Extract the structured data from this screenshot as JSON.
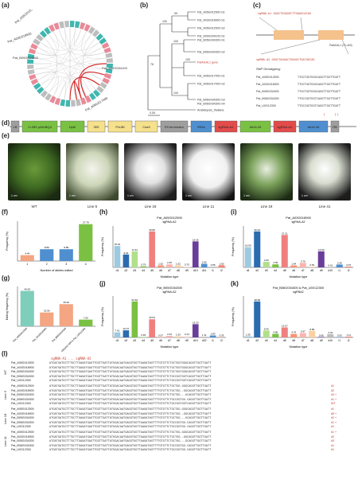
{
  "panels": {
    "a": "(a)",
    "b": "(b)",
    "c": "(c)",
    "d": "(d)",
    "e": "(e)",
    "f": "(f)",
    "g": "(g)",
    "h": "(h)",
    "i": "(i)",
    "j": "(j)",
    "k": "(k)",
    "l": "(l)"
  },
  "circos": {
    "labels_left": [
      "Pat_A05G012500",
      "Pat_A03G018900",
      "Pat_B05G034300"
    ],
    "labels_right": [
      "Pat_A09G034100",
      "Pat_A06G017400"
    ],
    "colors": {
      "ring_teal": "#3fb7b0",
      "ring_pink": "#e98a98",
      "link": "#d62728",
      "ring_gray": "#bdbdbd"
    }
  },
  "tree": {
    "leaves": [
      "Pat_A05G012500.m1",
      "Pat_A03G018900.m1",
      "Pat_A05G012500.m2",
      "Pat_A09G034100.m1",
      "Pat_B05G034300.m1",
      "Pat_B06G034300.m2",
      "PatAGAL1 gene",
      "Pat_A06G017400.m1",
      "Pat_A06G017400.m2",
      "Pat_B06G034300.m3",
      "Pat_B06G034300.m4",
      "Arabidopsis_thaliana"
    ],
    "bootstrap": [
      "100",
      "99",
      "100",
      "100",
      "100",
      "76"
    ],
    "scale": "0.05"
  },
  "gene_model": {
    "target1": "sgRNA-A1 GAGCTGGAGGCTTGAAGCACAG",
    "target2": "sgRNA-A2 GAGCTAGAACTGAGGCTGATAGCAG",
    "exon_label": "PatAGAL1 (70–400)",
    "snp_title": "SNP Genotyping:",
    "snp_rows": [
      {
        "name": "Pat_A05G012500",
        "seq": "TTGCTGGTGGGCAGGTTGGTTGATT"
      },
      {
        "name": "Pat_A03G018900",
        "seq": "TTGCTGGTGGGCAGGTTGGTTGATT"
      },
      {
        "name": "Pat_B05G034300",
        "seq": "TTGCTGGTGGGCAGGTTGGTTGATT"
      },
      {
        "name": "Pat_B06G034300",
        "seq": "TTGCCGGTGGTCAGGTTGGTTGATT"
      },
      {
        "name": "Pat_U0G12300",
        "seq": "TTGCCGGTGGTCAGGTTGGTTGATT"
      }
    ]
  },
  "construct": {
    "segments": [
      "LB",
      "2×35S pAtUBQ4",
      "HptII",
      "35S",
      "PcUBI",
      "Cas9",
      "E9 terminator",
      "tRNA",
      "sgRNA-A1",
      "AtU6-26",
      "sgRNA-A2",
      "AtU6-26",
      "RB"
    ],
    "colors": {
      "green": "#7ac143",
      "yellow": "#f5e08c",
      "blue": "#4f8fd0",
      "red": "#e34b4b",
      "gray": "#9e9e9e"
    }
  },
  "photos": {
    "captions": [
      "WT",
      "Line 5",
      "Line 18",
      "Line 11",
      "Line 19",
      "Line 41"
    ],
    "scale_bar": "1 cm"
  },
  "chart_f": {
    "type": "bar",
    "categories": [
      "1",
      "2",
      "3",
      "4"
    ],
    "values": [
      4.44,
      8.89,
      8.89,
      27.78
    ],
    "xlabel": "Number of alleles edited",
    "ylabel": "Frequency (%)",
    "ylim": [
      0,
      30
    ],
    "colors": [
      "#f4a582",
      "#4f8fd0",
      "#4f8fd0",
      "#7ac143"
    ]
  },
  "chart_g": {
    "type": "bar",
    "categories": [
      "Pat_A05G012500",
      "Pat_A03G018900",
      "Pat_B05G034300",
      "Pat_A06G017400 & Pat_U0G12300"
    ],
    "values": [
      40.0,
      15.56,
      25.0,
      7.5
    ],
    "ylabel": "Editing frequency (%)",
    "ylim": [
      0,
      45
    ],
    "colors": [
      "#7fcdbb",
      "#f4a582",
      "#f4a582",
      "#7ac143"
    ]
  },
  "chart_h": {
    "type": "bar",
    "title": "Pat_A05G012500",
    "subtitle": "sgRNA-A2",
    "categories": [
      "d1",
      "d2",
      "d3",
      "d4",
      "d5",
      "d6",
      "d7",
      "d8",
      "d9",
      "d10",
      "d11",
      "i1",
      "i2"
    ],
    "values": [
      15.91,
      9.62,
      11.91,
      0.79,
      26.8,
      1.52,
      2.25,
      1.52,
      0.75,
      19.35,
      2.65,
      0.55,
      1.6
    ],
    "xlabel": "Mutation type",
    "ylabel": "Frequency (%)",
    "colors": [
      "#9ecae1",
      "#2b6cb0",
      "#b2df8a",
      "#7ac143",
      "#f08080",
      "#fc9272",
      "#fbb4ae",
      "#fdd0a2",
      "#fde0dd",
      "#6a3d9a",
      "#4f8fd0",
      "#bdbdbd",
      "#fb8072"
    ]
  },
  "chart_i": {
    "type": "bar",
    "title": "Pat_A03G018900",
    "subtitle": "sgRNA-A2",
    "categories": [
      "d1",
      "d2",
      "d3",
      "d4",
      "d5",
      "d6",
      "d7",
      "d8",
      "d9",
      "d10",
      "i1",
      "i2"
    ],
    "values": [
      16.99,
      30.23,
      4.63,
      2.55,
      27.21,
      1.64,
      3.76,
      0.54,
      13.5,
      0.41,
      2.39,
      0.67
    ],
    "xlabel": "Mutation type",
    "ylabel": "Frequency (%)",
    "colors": [
      "#9ecae1",
      "#2b6cb0",
      "#b2df8a",
      "#7ac143",
      "#f08080",
      "#fc9272",
      "#fbb4ae",
      "#fdd0a2",
      "#6a3d9a",
      "#bdbdbd",
      "#4f8fd0",
      "#fb8072"
    ]
  },
  "chart_j": {
    "type": "bar",
    "title": "Pat_B05G034300",
    "subtitle": "sgRNA-A2",
    "categories": [
      "d1",
      "d2",
      "d3",
      "d4",
      "d5",
      "d6",
      "d7",
      "d8",
      "d9",
      "d10",
      "d22",
      "i1",
      "i2"
    ],
    "values": [
      7.41,
      10.37,
      52.64,
      0.93,
      26.54,
      0.57,
      2.24,
      1.63,
      2.14,
      19.33,
      1.11,
      2.83,
      0.35
    ],
    "xlabel": "Mutation type",
    "ylabel": "Frequency (%)",
    "colors": [
      "#9ecae1",
      "#2b6cb0",
      "#7ac143",
      "#b2df8a",
      "#f08080",
      "#fc9272",
      "#fbb4ae",
      "#fdd0a2",
      "#fde0dd",
      "#6a3d9a",
      "#bdbdbd",
      "#4f8fd0",
      "#fb8072"
    ]
  },
  "chart_k": {
    "type": "bar",
    "title": "Pat_B06G034300 & Pat_U0G12300",
    "subtitle": "sgRNA2",
    "categories": [
      "d1",
      "d2",
      "d3",
      "d4",
      "d5",
      "d6",
      "d7",
      "d8",
      "d9",
      "d10",
      "i1",
      "i2"
    ],
    "values": [
      1.55,
      48.98,
      9.43,
      4.85,
      13.57,
      4.76,
      5.97,
      8.89,
      0.66,
      4.43,
      0.53,
      1.11
    ],
    "xlabel": "Mutation type",
    "ylabel": "Frequency (%)",
    "colors": [
      "#9ecae1",
      "#2b6cb0",
      "#b2df8a",
      "#7ac143",
      "#f08080",
      "#fc9272",
      "#fbb4ae",
      "#fdd0a2",
      "#6a3d9a",
      "#bdbdbd",
      "#4f8fd0",
      "#fb8072"
    ]
  },
  "alignment": {
    "header": "sgRNA-A1 ... sgRNA-A2",
    "groups": [
      {
        "label": "WT",
        "rows": [
          {
            "name": "Pat_A05G012500",
            "seq": "ATGATGATGCTTTGCTTGAGATGAGTTGGTTGATTATGGACAATGAGGTGGTTAAGATAGTTTTGTGTTCTGCTGGTGGGCAGGTTGGTTGATT",
            "tag": ""
          },
          {
            "name": "Pat_A03G018900",
            "seq": "ATGATGATGCTTTGCTTGAGATGAGTTGGTTGATTATGGACAATGAGGTGGTTAAGATAGTTTTGTGTTCTGCTGGTGGGCAGGTTGGTTGATT",
            "tag": ""
          },
          {
            "name": "Pat_B05G034300",
            "seq": "ATGATGATGCTTTGCTTGAGATGAGTTGGTTGATTATGGACAATGAGGTGGTTAAGATAGTTTTGTGTTCTGCTGGTGGGCAGGTTGGTTGATT",
            "tag": ""
          },
          {
            "name": "Pat_B06G034300",
            "seq": "ATGATGATGCTTTGCTTGAGATGAGTTGGTTGATTATGGACAATGAGGTGGTTAAGATAGTTTTGTGTTCTGCCGGTGGTCAGGTTGGTTGATT",
            "tag": ""
          },
          {
            "name": "Pat_U0G12300",
            "seq": "ATGATGATGCTTTGCTTGAGATGAGTTGGTTGATTATGGACAATGAGGTGGTTAAGATAGTTTTGTGTTCTGCCGGTGGTCAGGTTGGTTGATT",
            "tag": ""
          }
        ]
      },
      {
        "label": "Line 5",
        "rows": [
          {
            "name": "Pat_A05G012500",
            "seq": "ATGATGATGCTTTGCTTGAGATGAGTTGGTTGATTATGGACAATGAGGTGGTTAAGATAGTTTTGTGTTCTGCTGG-GGGCAGGTTGGTTGATT",
            "tag": "d1"
          },
          {
            "name": "Pat_A03G018900",
            "seq": "ATGATGATGCTTTGCTTGAGATGAGTTGGTTGATTATGGACAATGAGGTGGTTAAGATAGTTTTGTGTTCTGCTGG--GGCAGGTTGGTTGATT",
            "tag": "d2"
          },
          {
            "name": "Pat_B05G034300",
            "seq": "ATGATGATGCTTTGCTTGAGATGAGTTGGTTGATTATGGACAATGAGGTGGTTAAGATAGTTTTGTGTTCTGCTGG---GCAGGTTGGTTGATT",
            "tag": "d3 +"
          },
          {
            "name": "Pat_B06G034300",
            "seq": "ATGATGATGCTTTGCTTGAGATGAGTTGGTTGATTATGGACAATGAGGTGGTTAAGATAGTTTTGTGTTCTGCCGGTGG-CAGGTTGGTTGATT",
            "tag": "d1 +"
          },
          {
            "name": "Pat_U0G12300",
            "seq": "ATGATGATGCTTTGCTTGAGATGAGTTGGTTGATTATGGACAATGAGGTGGTTAAGATAGTTTTGTGTTCTGCCGGTGGTCAGGTTGGTTGATT",
            "tag": "WT"
          }
        ]
      },
      {
        "label": "Line 18",
        "rows": [
          {
            "name": "Pat_A05G012500",
            "seq": "ATGATGATGCTTTGCTTGAGATGAGTTGGTTGATTATGGACAATGAGGTGGTTAAGATAGTTTTGTGTTCTGCTGG-GGGCAGGTTGGTTGATT",
            "tag": "d1"
          },
          {
            "name": "Pat_A03G018900",
            "seq": "ATGATGATGCTTTGCTTGAGATGAGTTGGTTGATTATGGACAATGAGGTGGTTAAGATAGTTTTGTGTTCTGCTGG--GGCAGGTTGGTTGATT",
            "tag": "d5 +"
          },
          {
            "name": "Pat_B05G034300",
            "seq": "ATGATGATGCTTTGCTTGAGATGAGTTGGTTGATTATGGACAATGAGGTGGTTAAGATAGTTTTGTGTTCTGCTGG---GCAGGTTGGTTGATT",
            "tag": "d2 +"
          },
          {
            "name": "Pat_B06G034300",
            "seq": "ATGATGATGCTTTGCTTGAGATGAGTTGGTTGATTATGGACAATGAGGTGGTTAAGATAGTTTTGTGTTCTGCCGGTGG-CAGGTTGGTTGATT",
            "tag": "d1 +"
          },
          {
            "name": "Pat_U0G12300",
            "seq": "ATGATGATGCTTTGCTTGAGATGAGTTGGTTGATTATGGACAATGAGGTGGTTAAGATAGTTTTGTGTTCTGCCGGTGG-CAGGTTGGTTGATT",
            "tag": "d1"
          }
        ]
      },
      {
        "label": "Line 11",
        "rows": [
          {
            "name": "Pat_A05G012500",
            "seq": "ATGATGATGCTTTGCTTGAGATGAGTTGGTTGATTATGGACAATGAGGTGGTTAAGATAGTTTTGTGTTCTGCTGG-GGGCAGGTTGGTTGATT",
            "tag": "d1 +"
          },
          {
            "name": "Pat_A03G018900",
            "seq": "ATGATGATGCTTTGCTTGAGATGAGTTGGTTGATTATGGACAATGAGGTGGTTAAGATAGTTTTGTGTTCTGCTGG--GGCAGGTTGGTTGATT",
            "tag": "d2"
          },
          {
            "name": "Pat_B05G034300",
            "seq": "ATGATGATGCTTTGCTTGAGATGAGTTGGTTGATTATGGACAATGAGGTGGTTAAGATAGTTTTGTGTTCTGCTGG---GCAGGTTGGTTGATT",
            "tag": "d3"
          },
          {
            "name": "Pat_B06G034300",
            "seq": "ATGATGATGCTTTGCTTGAGATGAGTTGGTTGATTATGGACAATGAGGTGGTTAAGATAGTTTTGTGTTCTGCCGGTGG-CAGGTTGGTTGATT",
            "tag": "d1"
          },
          {
            "name": "Pat_U0G12300",
            "seq": "ATGATGATGCTTTGCTTGAGATGAGTTGGTTGATTATGGACAATGAGGTGGTTAAGATAGTTTTGTGTTCTGCCGGTGG-CAGGTTGGTTGATT",
            "tag": "d1"
          }
        ]
      }
    ]
  }
}
